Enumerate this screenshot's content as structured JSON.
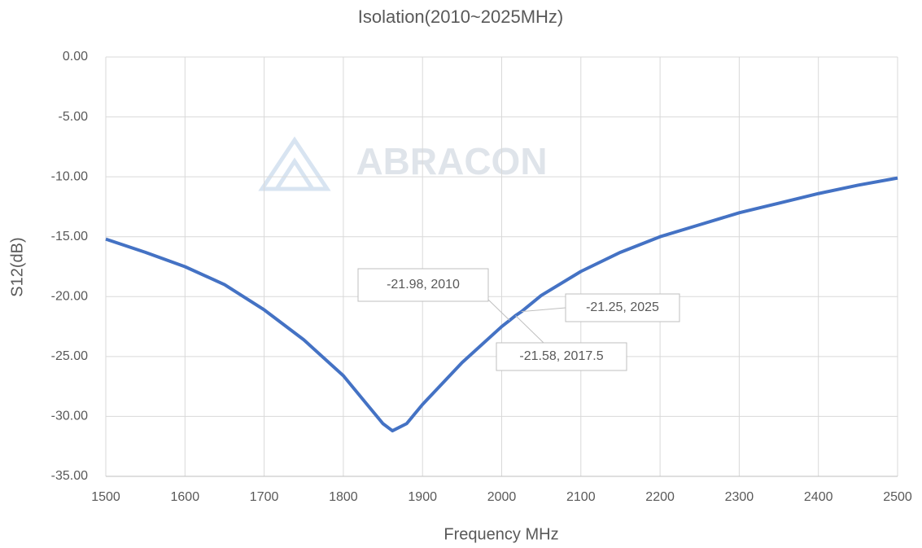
{
  "chart_data": {
    "type": "line",
    "title": "Isolation(2010~2025MHz)",
    "x_label": "Frequency MHz",
    "y_label": "S12(dB)",
    "watermark": "ABRACON",
    "series": [
      {
        "name": "S12",
        "color": "#4472c4",
        "x": [
          1500,
          1550,
          1600,
          1650,
          1700,
          1750,
          1800,
          1830,
          1850,
          1862,
          1880,
          1900,
          1950,
          2000,
          2010,
          2017.5,
          2025,
          2050,
          2100,
          2150,
          2200,
          2250,
          2300,
          2350,
          2400,
          2450,
          2500
        ],
        "values": [
          -15.2,
          -16.3,
          -17.5,
          -19.0,
          -21.1,
          -23.6,
          -26.6,
          -29.0,
          -30.6,
          -31.2,
          -30.6,
          -29.0,
          -25.5,
          -22.5,
          -21.98,
          -21.58,
          -21.25,
          -19.9,
          -17.9,
          -16.3,
          -15.0,
          -14.0,
          -13.0,
          -12.2,
          -11.4,
          -10.7,
          -10.1
        ]
      }
    ],
    "annotations": [
      {
        "text": "-21.98, 2010",
        "x": 2010,
        "y": -21.98
      },
      {
        "text": "-21.25, 2025",
        "x": 2025,
        "y": -21.25
      },
      {
        "text": "-21.58, 2017.5",
        "x": 2017.5,
        "y": -21.58
      }
    ],
    "xlim": [
      1500,
      2500
    ],
    "xticks": [
      1500,
      1600,
      1700,
      1800,
      1900,
      2000,
      2100,
      2200,
      2300,
      2400,
      2500
    ],
    "ylim": [
      -35,
      0
    ],
    "yticks": [
      {
        "value": 0,
        "label": "0.00"
      },
      {
        "value": -5,
        "label": "-5.00"
      },
      {
        "value": -10,
        "label": "-10.00"
      },
      {
        "value": -15,
        "label": "-15.00"
      },
      {
        "value": -20,
        "label": "-20.00"
      },
      {
        "value": -25,
        "label": "-25.00"
      },
      {
        "value": -30,
        "label": "-30.00"
      },
      {
        "value": -35,
        "label": "-35.00"
      }
    ],
    "grid": true
  }
}
